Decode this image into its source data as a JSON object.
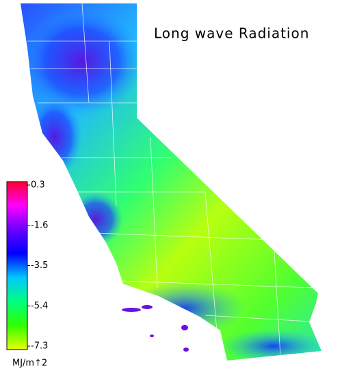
{
  "title": "Long wave Radiation",
  "colorbar": {
    "unit": "MJ/m↑2",
    "lim": [
      -7.3,
      0.3
    ],
    "ticks": [
      0.3,
      -1.6,
      -3.5,
      -5.4,
      -7.3
    ],
    "colors": [
      "#ff0030",
      "#ff00ff",
      "#6a00ff",
      "#0000ff",
      "#00c8ff",
      "#00ff80",
      "#30ff00",
      "#e8ff00"
    ]
  }
}
